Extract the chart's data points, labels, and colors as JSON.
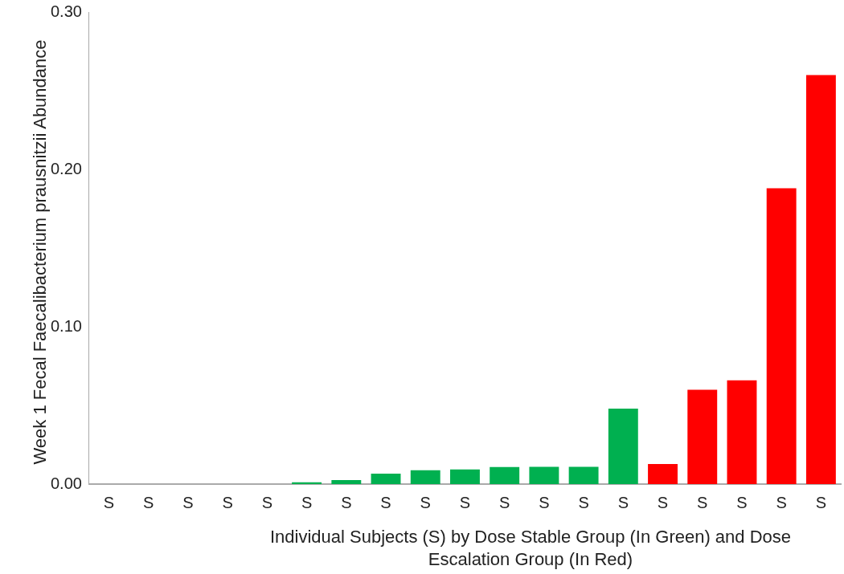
{
  "chart_data": {
    "type": "bar",
    "xlabel": "Individual Subjects (S) by Dose Stable Group (In Green) and Dose Escalation Group (In Red)",
    "ylabel": "Week 1 Fecal Faecalibacterium prausnitzii Abundance",
    "categories": [
      "S",
      "S",
      "S",
      "S",
      "S",
      "S",
      "S",
      "S",
      "S",
      "S",
      "S",
      "S",
      "S",
      "S",
      "S",
      "S",
      "S",
      "S",
      "S"
    ],
    "values": [
      0,
      0,
      0,
      0,
      0,
      0.0012,
      0.0025,
      0.0066,
      0.0088,
      0.0093,
      0.0108,
      0.011,
      0.011,
      0.048,
      0.0128,
      0.06,
      0.066,
      0.188,
      0.26
    ],
    "colors": [
      "#00b050",
      "#00b050",
      "#00b050",
      "#00b050",
      "#00b050",
      "#00b050",
      "#00b050",
      "#00b050",
      "#00b050",
      "#00b050",
      "#00b050",
      "#00b050",
      "#00b050",
      "#00b050",
      "#ff0000",
      "#ff0000",
      "#ff0000",
      "#ff0000",
      "#ff0000"
    ],
    "ylim": [
      0,
      0.3
    ],
    "yticks": [
      {
        "value": 0,
        "label": "0.00"
      },
      {
        "value": 0.1,
        "label": "0.10"
      },
      {
        "value": 0.2,
        "label": "0.20"
      },
      {
        "value": 0.3,
        "label": "0.30"
      }
    ],
    "grid": false
  }
}
